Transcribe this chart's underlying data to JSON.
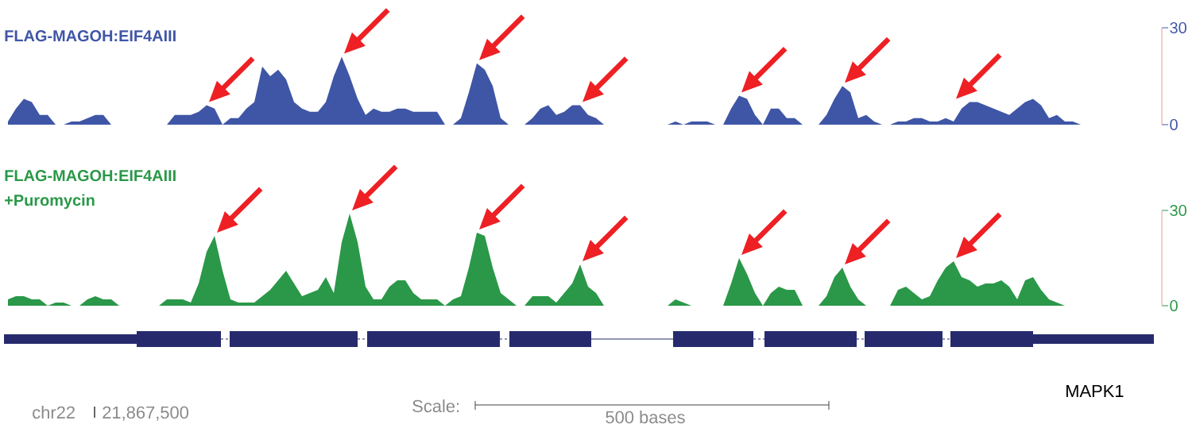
{
  "chart_data": [
    {
      "type": "area",
      "title": "FLAG-MAGOH:EIF4AIII",
      "categories": [
        null,
        null,
        null,
        null,
        null,
        null,
        null,
        null,
        null,
        null,
        null,
        null,
        null,
        null,
        null,
        null,
        null,
        null,
        null,
        null,
        null,
        null,
        null,
        null,
        null,
        null,
        null,
        null,
        null,
        null,
        null,
        null,
        null,
        null,
        null,
        null,
        null,
        null,
        null,
        null,
        null,
        null,
        null,
        null,
        null,
        null,
        null,
        null,
        null,
        null,
        null,
        null,
        null,
        null,
        null,
        null,
        null,
        null,
        null,
        null,
        null,
        null,
        null,
        null,
        null,
        null,
        null,
        null,
        null,
        null,
        null,
        null,
        null,
        null,
        null,
        null,
        null,
        null,
        null,
        null,
        null,
        null,
        null,
        null,
        null,
        null,
        null,
        null,
        null,
        null,
        null,
        null,
        null,
        null,
        null,
        null,
        null,
        null,
        null,
        null,
        null,
        null,
        null,
        null,
        null,
        null,
        null,
        null,
        null,
        null,
        null,
        null,
        null,
        null,
        null,
        null,
        null,
        null,
        null,
        null,
        null,
        null,
        null,
        null,
        null,
        null,
        null,
        null,
        null,
        null,
        null,
        null,
        null,
        null,
        null,
        null,
        null,
        null,
        null,
        null,
        null,
        null,
        null,
        null,
        null
      ],
      "series": [
        {
          "color": "#3f56a6",
          "values": [
            1,
            5,
            8,
            7,
            3,
            3,
            0,
            0,
            1,
            1,
            2,
            3,
            3,
            0,
            0,
            0,
            0,
            0,
            0,
            0,
            0,
            3,
            3,
            3,
            4,
            6,
            5,
            0,
            2,
            2,
            5,
            7,
            18,
            15,
            17,
            14,
            7,
            5,
            4,
            4,
            7,
            15,
            21,
            15,
            8,
            3,
            5,
            4,
            4,
            5,
            5,
            4,
            4,
            4,
            4,
            0,
            0,
            2,
            10,
            19,
            17,
            12,
            2,
            0,
            0,
            0,
            2,
            5,
            6,
            3,
            4,
            6,
            6,
            3,
            2,
            0,
            0,
            0,
            0,
            0,
            0,
            0,
            0,
            0,
            1,
            0,
            1,
            1,
            1,
            0,
            0,
            5,
            9,
            8,
            3,
            0,
            5,
            5,
            2,
            2,
            0,
            0,
            0,
            3,
            8,
            12,
            10,
            2,
            3,
            1,
            0,
            0,
            1,
            1,
            2,
            2,
            1,
            1,
            2,
            1,
            5,
            7,
            7,
            6,
            5,
            4,
            3,
            5,
            7,
            8,
            6,
            2,
            3,
            1,
            1,
            0,
            0,
            0,
            0,
            0,
            0,
            0,
            0,
            0,
            0
          ]
        }
      ],
      "ylim": [
        0,
        30
      ],
      "yticks": [
        0,
        30
      ],
      "tick_labels": "y"
    },
    {
      "type": "area",
      "title": "FLAG-MAGOH:EIF4AIII",
      "subtitle": "+Puromycin",
      "categories": [
        null,
        null,
        null,
        null,
        null,
        null,
        null,
        null,
        null,
        null,
        null,
        null,
        null,
        null,
        null,
        null,
        null,
        null,
        null,
        null,
        null,
        null,
        null,
        null,
        null,
        null,
        null,
        null,
        null,
        null,
        null,
        null,
        null,
        null,
        null,
        null,
        null,
        null,
        null,
        null,
        null,
        null,
        null,
        null,
        null,
        null,
        null,
        null,
        null,
        null,
        null,
        null,
        null,
        null,
        null,
        null,
        null,
        null,
        null,
        null,
        null,
        null,
        null,
        null,
        null,
        null,
        null,
        null,
        null,
        null,
        null,
        null,
        null,
        null,
        null,
        null,
        null,
        null,
        null,
        null,
        null,
        null,
        null,
        null,
        null,
        null,
        null,
        null,
        null,
        null,
        null,
        null,
        null,
        null,
        null,
        null,
        null,
        null,
        null,
        null,
        null,
        null,
        null,
        null,
        null,
        null,
        null,
        null,
        null,
        null,
        null,
        null,
        null,
        null,
        null,
        null,
        null,
        null,
        null,
        null,
        null,
        null,
        null,
        null,
        null,
        null,
        null,
        null,
        null,
        null,
        null,
        null,
        null,
        null,
        null,
        null,
        null,
        null,
        null,
        null,
        null,
        null,
        null,
        null,
        null
      ],
      "series": [
        {
          "color": "#2a9848",
          "values": [
            2,
            3,
            3,
            2,
            2,
            0,
            1,
            1,
            0,
            0,
            2,
            3,
            2,
            2,
            0,
            0,
            0,
            0,
            0,
            0,
            2,
            2,
            2,
            1,
            7,
            17,
            22,
            11,
            2,
            1,
            1,
            1,
            3,
            5,
            8,
            11,
            7,
            3,
            4,
            5,
            9,
            4,
            20,
            29,
            20,
            6,
            2,
            2,
            6,
            8,
            8,
            4,
            2,
            2,
            2,
            0,
            2,
            3,
            12,
            23,
            22,
            12,
            4,
            2,
            0,
            0,
            3,
            3,
            3,
            1,
            4,
            7,
            13,
            6,
            4,
            0,
            0,
            0,
            0,
            0,
            0,
            0,
            0,
            0,
            2,
            1,
            0,
            0,
            0,
            0,
            0,
            7,
            15,
            10,
            4,
            0,
            4,
            6,
            5,
            5,
            0,
            0,
            0,
            3,
            9,
            12,
            6,
            2,
            0,
            0,
            0,
            0,
            5,
            6,
            4,
            2,
            3,
            8,
            12,
            14,
            9,
            8,
            6,
            7,
            7,
            8,
            6,
            2,
            8,
            9,
            5,
            2,
            1,
            0,
            0,
            0,
            0,
            0,
            0,
            0,
            0,
            0,
            0,
            0,
            0
          ]
        }
      ],
      "ylim": [
        0,
        30
      ],
      "yticks": [
        0,
        30
      ],
      "tick_labels": "y",
      "annotations": [
        "chr22",
        "21,867,500",
        "Scale:",
        "500 bases",
        "MAPK1"
      ]
    }
  ]
}
